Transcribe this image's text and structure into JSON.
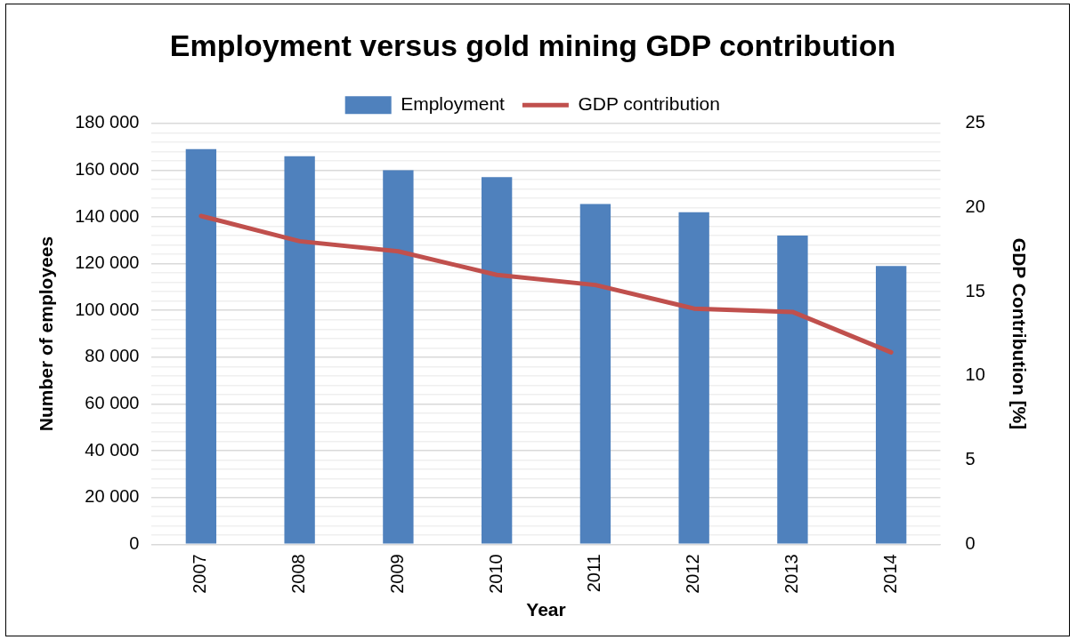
{
  "chart_data": {
    "type": "bar",
    "title": "Employment versus gold mining GDP contribution",
    "xlabel": "Year",
    "ylabel": "Number of employees",
    "y2label": "GDP Contribution [%]",
    "categories": [
      "2007",
      "2008",
      "2009",
      "2010",
      "2011",
      "2012",
      "2013",
      "2014"
    ],
    "series": [
      {
        "name": "Employment",
        "color": "#4f81bd",
        "values": [
          169000,
          166000,
          160000,
          157000,
          145500,
          142000,
          132000,
          119000
        ]
      },
      {
        "name": "GDP contribution",
        "type": "line",
        "axis": "y2",
        "color": "#c0504d",
        "values": [
          19.5,
          18,
          17.4,
          16,
          15.4,
          14,
          13.8,
          11.4
        ]
      }
    ],
    "ylim": [
      0,
      180000
    ],
    "yticks": [
      {
        "value": 0,
        "label": "0"
      },
      {
        "value": 4000,
        "label": null
      },
      {
        "value": 8000,
        "label": null
      },
      {
        "value": 12000,
        "label": null
      },
      {
        "value": 16000,
        "label": null
      },
      {
        "value": 20000,
        "label": "20 000"
      },
      {
        "value": 24000,
        "label": null
      },
      {
        "value": 28000,
        "label": null
      },
      {
        "value": 32000,
        "label": null
      },
      {
        "value": 36000,
        "label": null
      },
      {
        "value": 40000,
        "label": "40 000"
      },
      {
        "value": 44000,
        "label": null
      },
      {
        "value": 48000,
        "label": null
      },
      {
        "value": 52000,
        "label": null
      },
      {
        "value": 56000,
        "label": null
      },
      {
        "value": 60000,
        "label": "60 000"
      },
      {
        "value": 64000,
        "label": null
      },
      {
        "value": 68000,
        "label": null
      },
      {
        "value": 72000,
        "label": null
      },
      {
        "value": 76000,
        "label": null
      },
      {
        "value": 80000,
        "label": "80 000"
      },
      {
        "value": 84000,
        "label": null
      },
      {
        "value": 88000,
        "label": null
      },
      {
        "value": 92000,
        "label": null
      },
      {
        "value": 96000,
        "label": null
      },
      {
        "value": 100000,
        "label": "100 000"
      },
      {
        "value": 104000,
        "label": null
      },
      {
        "value": 108000,
        "label": null
      },
      {
        "value": 112000,
        "label": null
      },
      {
        "value": 116000,
        "label": null
      },
      {
        "value": 120000,
        "label": "120 000"
      },
      {
        "value": 124000,
        "label": null
      },
      {
        "value": 128000,
        "label": null
      },
      {
        "value": 132000,
        "label": null
      },
      {
        "value": 136000,
        "label": null
      },
      {
        "value": 140000,
        "label": "140 000"
      },
      {
        "value": 144000,
        "label": null
      },
      {
        "value": 148000,
        "label": null
      },
      {
        "value": 152000,
        "label": null
      },
      {
        "value": 156000,
        "label": null
      },
      {
        "value": 160000,
        "label": "160 000"
      },
      {
        "value": 164000,
        "label": null
      },
      {
        "value": 168000,
        "label": null
      },
      {
        "value": 172000,
        "label": null
      },
      {
        "value": 176000,
        "label": null
      },
      {
        "value": 180000,
        "label": "180 000"
      }
    ],
    "y2lim": [
      0,
      25
    ],
    "y2ticks": [
      0,
      5,
      10,
      15,
      20,
      25
    ],
    "grid": "y",
    "legend": "top",
    "marker": "none",
    "line_style": "solid"
  }
}
